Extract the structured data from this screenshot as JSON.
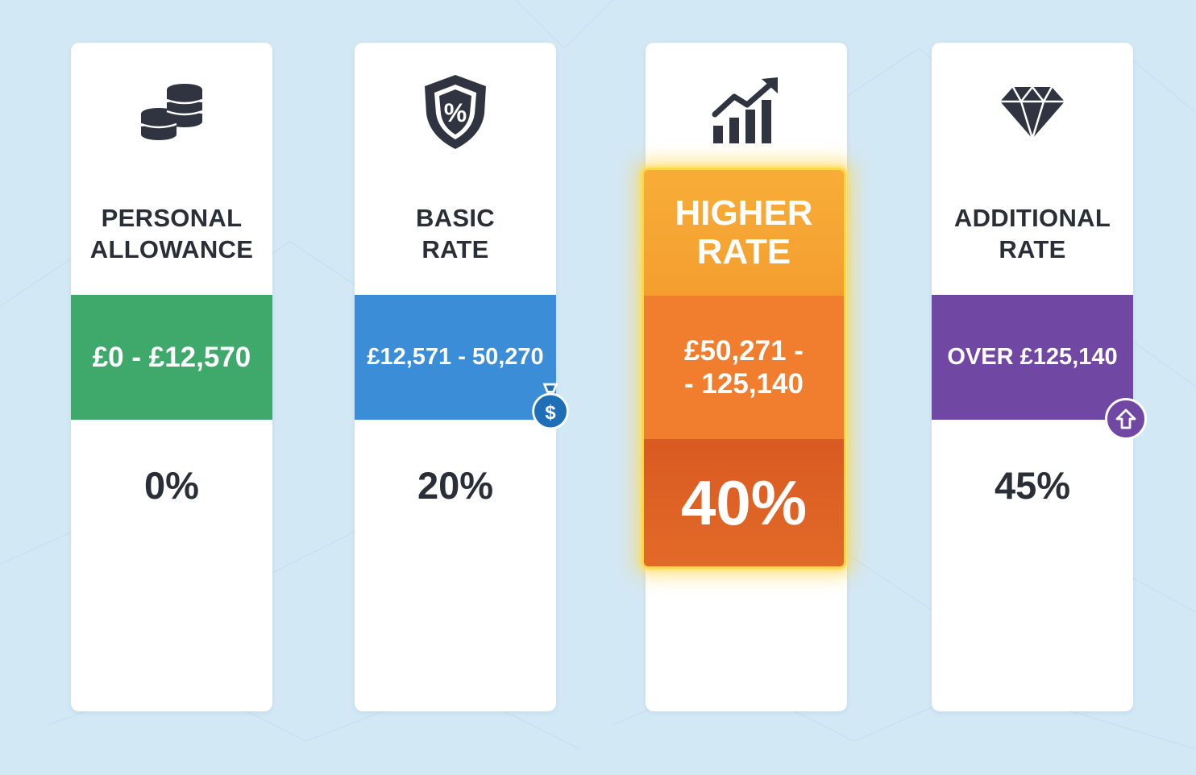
{
  "tax_bands": [
    {
      "title": "PERSONAL\nALLOWANCE",
      "range": "£0 - £12,570",
      "rate": "0%",
      "icon": "coin-stack-icon",
      "color": "#3fa96b"
    },
    {
      "title": "BASIC\nRATE",
      "range": "£12,571 - 50,270",
      "rate": "20%",
      "icon": "shield-percent-icon",
      "color": "#3a8dd6",
      "badge_icon": "money-bag-icon"
    },
    {
      "title": "HIGHER\nRATE",
      "range": "£50,271 -\n- 125,140",
      "rate": "40%",
      "icon": "growth-chart-icon",
      "color": "#f07e2e",
      "highlighted": true
    },
    {
      "title": "ADDITIONAL\nRATE",
      "range": "OVER £125,140",
      "rate": "45%",
      "icon": "diamond-icon",
      "color": "#7048a3",
      "badge_icon": "up-arrow-icon"
    }
  ],
  "colors": {
    "background": "#d3e8f5",
    "text": "#2a2f37",
    "highlight_glow": "#ffd84a"
  }
}
